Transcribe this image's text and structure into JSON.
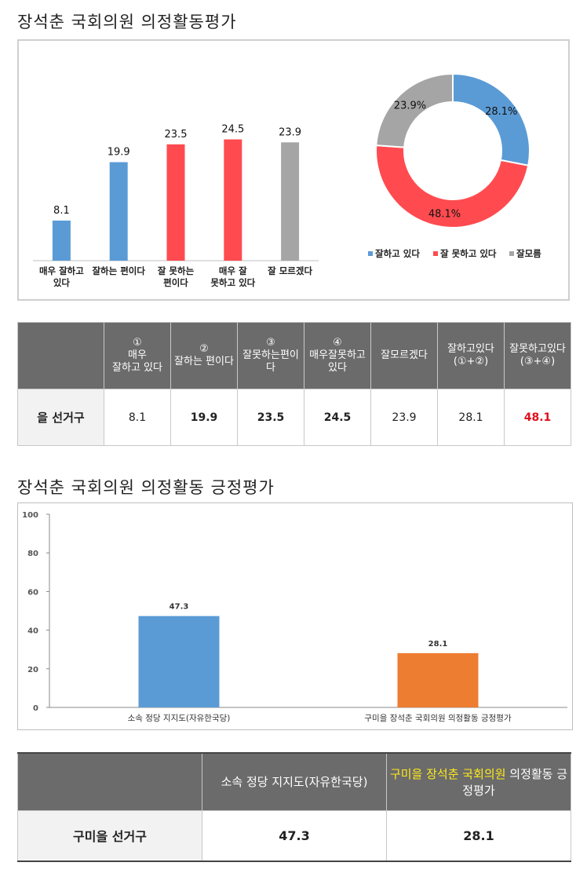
{
  "heading1": "장석춘  국회의원  의정활동평가",
  "heading2": "장석춘  국회의원  의정활동  긍정평가",
  "chart_data": [
    {
      "type": "bar",
      "categories": [
        "매우 잘하고\n있다",
        "잘하는 편이다",
        "잘 못하는\n편이다",
        "매우 잘\n못하고 있다",
        "잘 모르겠다"
      ],
      "values": [
        8.1,
        19.9,
        23.5,
        24.5,
        23.9
      ],
      "data_labels": [
        "8.1",
        "19.9",
        "23.5",
        "24.5",
        "23.9"
      ],
      "colors": [
        "#5b9bd5",
        "#5b9bd5",
        "#ff4b4f",
        "#ff4b4f",
        "#a5a5a5"
      ],
      "title": "",
      "ylim": [
        0,
        30
      ]
    },
    {
      "type": "pie",
      "donut": true,
      "labels": [
        "잘하고 있다",
        "잘 못하고 있다",
        "잘모름"
      ],
      "values": [
        28.1,
        48.1,
        23.9
      ],
      "data_labels": [
        "28.1%",
        "48.1%",
        "23.9%"
      ],
      "colors": [
        "#5b9bd5",
        "#ff4b4f",
        "#a5a5a5"
      ],
      "legend_position": "bottom"
    },
    {
      "type": "bar",
      "categories": [
        "소속 정당 지지도(자유한국당)",
        "구미을 장석춘 국회의원 의정활동 긍정평가"
      ],
      "values": [
        47.3,
        28.1
      ],
      "data_labels": [
        "47.3",
        "28.1"
      ],
      "colors": [
        "#5b9bd5",
        "#ed7d31"
      ],
      "ylim": [
        0,
        100
      ],
      "yticks": [
        "0",
        "20",
        "40",
        "60",
        "80",
        "100"
      ],
      "grid": false
    }
  ],
  "table1": {
    "headers": [
      {
        "num": "①",
        "text": "매우\n잘하고 있다"
      },
      {
        "num": "②",
        "text": "잘하는 편이다"
      },
      {
        "num": "③",
        "text": "잘못하는편이다"
      },
      {
        "num": "④",
        "text": "매우잘못하고\n있다"
      },
      {
        "num": "",
        "text": "잘모르겠다"
      },
      {
        "num": "",
        "text": "잘하고있다\n(①+②)"
      },
      {
        "num": "",
        "text": "잘못하고있다\n(③+④)"
      }
    ],
    "row_label": "을 선거구",
    "cells": [
      "8.1",
      "19.9",
      "23.5",
      "24.5",
      "23.9",
      "28.1",
      "48.1"
    ]
  },
  "table2": {
    "header1": "소속 정당 지지도(자유한국당)",
    "header2_highlight": "구미을 장석춘 국회의원",
    "header2_rest": " 의정활동 긍정평가",
    "row_label": "구미을 선거구",
    "cells": [
      "47.3",
      "28.1"
    ]
  }
}
